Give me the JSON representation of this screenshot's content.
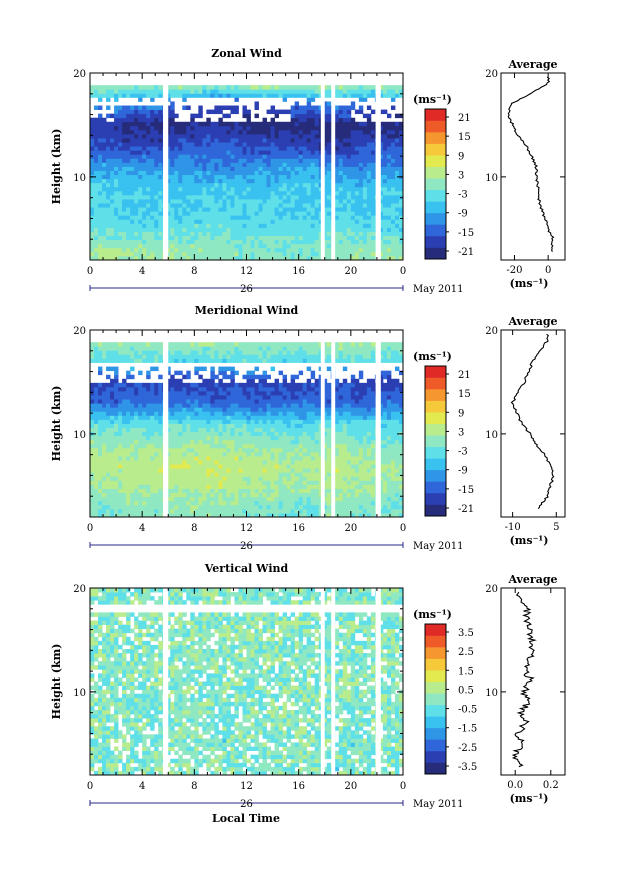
{
  "panels": [
    {
      "title": "Zonal Wind",
      "ylabel": "Height (km)",
      "y_ticks": [
        "10",
        "20"
      ],
      "x_ticks": [
        "0",
        "4",
        "8",
        "12",
        "16",
        "20",
        "0"
      ],
      "date_label": "26",
      "month_label": "May 2011",
      "unit_label": "(ms⁻¹)",
      "colorbar_ticks": [
        "21",
        "15",
        "9",
        "3",
        "-3",
        "-9",
        "-15",
        "-21"
      ],
      "profile_title": "Average",
      "profile_y_ticks": [
        "10",
        "20"
      ],
      "profile_x_ticks": [
        "-20",
        "0"
      ],
      "profile_unit": "(ms⁻¹)"
    },
    {
      "title": "Meridional Wind",
      "ylabel": "Height (km)",
      "y_ticks": [
        "10",
        "20"
      ],
      "x_ticks": [
        "0",
        "4",
        "8",
        "12",
        "16",
        "20",
        "0"
      ],
      "date_label": "26",
      "month_label": "May 2011",
      "unit_label": "(ms⁻¹)",
      "colorbar_ticks": [
        "21",
        "15",
        "9",
        "3",
        "-3",
        "-9",
        "-15",
        "-21"
      ],
      "profile_title": "Average",
      "profile_y_ticks": [
        "10",
        "20"
      ],
      "profile_x_ticks": [
        "-10",
        "5"
      ],
      "profile_unit": "(ms⁻¹)"
    },
    {
      "title": "Vertical Wind",
      "ylabel": "Height (km)",
      "y_ticks": [
        "10",
        "20"
      ],
      "x_ticks": [
        "0",
        "4",
        "8",
        "12",
        "16",
        "20",
        "0"
      ],
      "date_label": "26",
      "month_label": "May 2011",
      "unit_label": "(ms⁻¹)",
      "colorbar_ticks": [
        "3.5",
        "2.5",
        "1.5",
        "0.5",
        "-0.5",
        "-1.5",
        "-2.5",
        "-3.5"
      ],
      "profile_title": "Average",
      "profile_y_ticks": [
        "10",
        "20"
      ],
      "profile_x_ticks": [
        "0.0",
        "0.2"
      ],
      "profile_unit": "(ms⁻¹)"
    }
  ],
  "xlabel": "Local Time",
  "colormap": [
    "#262b7a",
    "#2b3fb3",
    "#2f66d9",
    "#2f95e6",
    "#39c1f0",
    "#5fe0e8",
    "#8fe8c2",
    "#b9ec8c",
    "#e3ea4f",
    "#f6c93a",
    "#f6962e",
    "#ee5a28",
    "#df2a26"
  ],
  "chart_data": [
    {
      "type": "heatmap",
      "title": "Zonal Wind",
      "xlabel": "Local Time",
      "ylabel": "Height (km)",
      "colorbar_label": "(ms⁻¹)",
      "xlim": [
        0,
        24
      ],
      "ylim": [
        2,
        20
      ],
      "clim": [
        -24,
        24
      ],
      "data_gaps_hours": [
        [
          5.6,
          6.0
        ],
        [
          17.7,
          18.0
        ],
        [
          18.5,
          18.8
        ],
        [
          21.9,
          22.3
        ]
      ],
      "height_km": [
        3,
        5,
        7,
        9,
        11,
        13,
        15,
        17,
        19
      ],
      "value_ms": [
        [
          2,
          1,
          1,
          0,
          -1,
          -1,
          0,
          1,
          1
        ],
        [
          -3,
          -4,
          -3,
          -3,
          -4,
          -4,
          -3,
          -4,
          -5
        ],
        [
          -5,
          -6,
          -6,
          -5,
          -5,
          -6,
          -6,
          -7,
          -6
        ],
        [
          -5,
          -6,
          -7,
          -6,
          -7,
          -6,
          -7,
          -7,
          -6
        ],
        [
          -10,
          -11,
          -11,
          -12,
          -11,
          -10,
          -12,
          -12,
          -13
        ],
        [
          -17,
          -18,
          -16,
          -15,
          -17,
          -18,
          -20,
          -17,
          -16
        ],
        [
          -19,
          -22,
          -22,
          -21,
          -22,
          -22,
          -23,
          -22,
          -22
        ],
        [
          -10,
          -12,
          -14,
          -15,
          -16,
          -14,
          -12,
          -14,
          -15
        ],
        [
          3,
          2,
          4,
          2,
          5,
          3,
          4,
          2,
          5
        ]
      ],
      "value_times_hours": [
        1,
        4,
        7,
        10,
        13,
        16,
        19,
        21,
        23
      ],
      "average_profile": {
        "x": [
          2,
          3,
          0,
          -2,
          -4,
          -6,
          -6,
          -7,
          -7,
          -13,
          -18,
          -24,
          -22,
          0
        ],
        "y": [
          3,
          4,
          5,
          6,
          7,
          8,
          9,
          10,
          11,
          13,
          14,
          16,
          17,
          19
        ]
      }
    },
    {
      "type": "heatmap",
      "title": "Meridional Wind",
      "xlabel": "Local Time",
      "ylabel": "Height (km)",
      "colorbar_label": "(ms⁻¹)",
      "xlim": [
        0,
        24
      ],
      "ylim": [
        2,
        20
      ],
      "clim": [
        -24,
        24
      ],
      "data_gaps_hours": [
        [
          5.6,
          6.0
        ],
        [
          17.7,
          18.0
        ],
        [
          18.5,
          18.8
        ],
        [
          21.9,
          22.3
        ]
      ],
      "height_km": [
        3,
        5,
        7,
        9,
        11,
        13,
        15,
        17,
        19
      ],
      "value_ms": [
        [
          -1,
          0,
          1,
          0,
          -1,
          -2,
          0,
          -1,
          -2
        ],
        [
          2,
          3,
          3,
          4,
          3,
          2,
          3,
          2,
          1
        ],
        [
          4,
          4,
          5,
          5,
          4,
          3,
          4,
          3,
          2
        ],
        [
          1,
          1,
          2,
          2,
          1,
          0,
          1,
          0,
          -1
        ],
        [
          -3,
          -4,
          -3,
          -3,
          -4,
          -5,
          -3,
          -4,
          -5
        ],
        [
          -15,
          -14,
          -13,
          -15,
          -16,
          -14,
          -15,
          -16,
          -14
        ],
        [
          -18,
          -17,
          -19,
          -18,
          -17,
          -18,
          -16,
          -18,
          -19
        ],
        [
          -4,
          -3,
          -5,
          -4,
          -3,
          -5,
          -4,
          -3,
          -4
        ],
        [
          2,
          1,
          3,
          2,
          1,
          2,
          3,
          2,
          1
        ]
      ],
      "value_times_hours": [
        1,
        4,
        7,
        10,
        13,
        16,
        19,
        21,
        23
      ],
      "average_profile": {
        "x": [
          -1,
          2,
          3,
          4,
          3,
          1,
          -2,
          -4,
          -7,
          -10,
          -8,
          -6,
          -3,
          2
        ],
        "y": [
          3,
          4,
          5,
          6,
          7,
          8,
          9,
          10,
          11,
          13,
          14,
          15,
          17,
          19
        ]
      }
    },
    {
      "type": "heatmap",
      "title": "Vertical Wind",
      "xlabel": "Local Time",
      "ylabel": "Height (km)",
      "colorbar_label": "(ms⁻¹)",
      "xlim": [
        0,
        24
      ],
      "ylim": [
        2,
        20
      ],
      "clim": [
        -4,
        4
      ],
      "data_gaps_hours": [
        [
          5.6,
          6.0
        ],
        [
          17.7,
          18.0
        ],
        [
          18.5,
          18.8
        ],
        [
          21.9,
          22.3
        ]
      ],
      "height_km": [
        3,
        5,
        7,
        9,
        11,
        13,
        15,
        17,
        19
      ],
      "value_ms": [
        [
          0.1,
          0.0,
          0.1,
          0.2,
          0.1,
          0.0,
          -0.1,
          0.1,
          0.0
        ],
        [
          0.0,
          0.1,
          0.0,
          -0.1,
          0.0,
          0.1,
          0.0,
          -0.1,
          0.1
        ],
        [
          0.1,
          0.0,
          0.1,
          0.0,
          0.1,
          0.2,
          0.0,
          0.1,
          0.0
        ],
        [
          0.0,
          -0.1,
          0.0,
          0.1,
          0.0,
          0.1,
          -0.1,
          0.0,
          0.1
        ],
        [
          0.1,
          0.1,
          0.2,
          0.1,
          0.0,
          0.1,
          0.2,
          0.1,
          0.1
        ],
        [
          0.0,
          0.1,
          0.0,
          0.1,
          0.2,
          0.0,
          0.1,
          0.0,
          0.1
        ],
        [
          0.1,
          0.0,
          0.1,
          0.2,
          0.1,
          0.1,
          0.0,
          0.1,
          0.2
        ],
        [
          0.1,
          0.2,
          0.1,
          0.0,
          0.1,
          0.2,
          0.1,
          0.1,
          0.0
        ],
        [
          0.0,
          0.1,
          0.0,
          0.1,
          0.0,
          0.1,
          0.1,
          0.0,
          0.1
        ]
      ],
      "value_times_hours": [
        1,
        4,
        7,
        10,
        13,
        16,
        19,
        21,
        23
      ],
      "average_profile": {
        "x": [
          0.02,
          0.0,
          0.04,
          0.01,
          0.06,
          0.03,
          0.07,
          0.05,
          0.09,
          0.06,
          0.1,
          0.08,
          0.06,
          0.03
        ],
        "y": [
          3,
          4,
          5,
          6,
          7,
          8,
          9,
          10,
          11,
          12,
          14,
          16,
          18,
          19
        ]
      }
    }
  ]
}
